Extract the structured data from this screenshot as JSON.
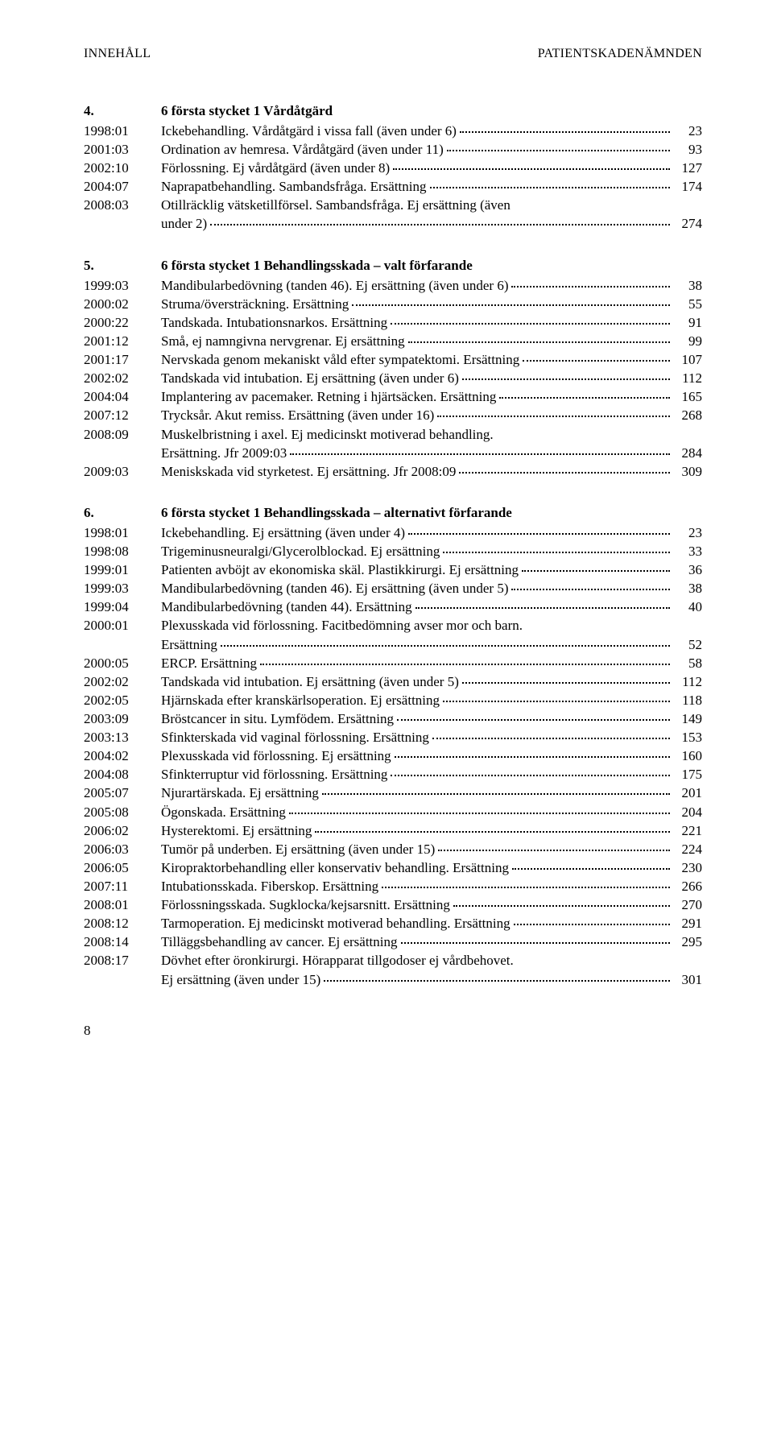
{
  "header": {
    "left": "INNEHÅLL",
    "right": "PATIENTSKADENÄMNDEN"
  },
  "footer_page": "8",
  "sections": [
    {
      "num": "4.",
      "title": "6 första stycket 1 Vårdåtgärd",
      "entries": [
        {
          "code": "1998:01",
          "lines": [
            "Ickebehandling. Vårdåtgärd i vissa fall (även under 6)"
          ],
          "page": "23"
        },
        {
          "code": "2001:03",
          "lines": [
            "Ordination av hemresa. Vårdåtgärd (även under 11)"
          ],
          "page": "93"
        },
        {
          "code": "2002:10",
          "lines": [
            "Förlossning. Ej vårdåtgärd (även under 8)"
          ],
          "page": "127"
        },
        {
          "code": "2004:07",
          "lines": [
            "Naprapatbehandling. Sambandsfråga. Ersättning"
          ],
          "page": "174"
        },
        {
          "code": "2008:03",
          "lines": [
            "Otillräcklig vätsketillförsel. Sambandsfråga. Ej ersättning (även",
            "under 2)"
          ],
          "page": "274"
        }
      ]
    },
    {
      "num": "5.",
      "title": "6 första stycket 1 Behandlingsskada – valt förfarande",
      "entries": [
        {
          "code": "1999:03",
          "lines": [
            "Mandibularbedövning (tanden 46). Ej ersättning (även under 6)"
          ],
          "page": "38"
        },
        {
          "code": "2000:02",
          "lines": [
            "Struma/översträckning. Ersättning"
          ],
          "page": "55"
        },
        {
          "code": "2000:22",
          "lines": [
            "Tandskada. Intubationsnarkos. Ersättning"
          ],
          "page": "91"
        },
        {
          "code": "2001:12",
          "lines": [
            "Små, ej namngivna nervgrenar. Ej ersättning"
          ],
          "page": "99"
        },
        {
          "code": "2001:17",
          "lines": [
            "Nervskada genom mekaniskt våld efter sympatektomi. Ersättning"
          ],
          "page": "107"
        },
        {
          "code": "2002:02",
          "lines": [
            "Tandskada vid intubation. Ej ersättning (även under 6)"
          ],
          "page": "112"
        },
        {
          "code": "2004:04",
          "lines": [
            "Implantering av pacemaker. Retning i hjärtsäcken. Ersättning"
          ],
          "page": "165"
        },
        {
          "code": "2007:12",
          "lines": [
            "Trycksår. Akut remiss. Ersättning (även under 16)"
          ],
          "page": "268"
        },
        {
          "code": "2008:09",
          "lines": [
            "Muskelbristning i axel. Ej medicinskt motiverad behandling.",
            "Ersättning. Jfr 2009:03"
          ],
          "page": "284"
        },
        {
          "code": "2009:03",
          "lines": [
            "Meniskskada vid styrketest. Ej ersättning. Jfr 2008:09"
          ],
          "page": "309"
        }
      ]
    },
    {
      "num": "6.",
      "title": "6 första stycket 1 Behandlingsskada – alternativt förfarande",
      "entries": [
        {
          "code": "1998:01",
          "lines": [
            "Ickebehandling. Ej ersättning (även under 4)"
          ],
          "page": "23"
        },
        {
          "code": "1998:08",
          "lines": [
            "Trigeminusneuralgi/Glycerolblockad. Ej ersättning"
          ],
          "page": "33"
        },
        {
          "code": "1999:01",
          "lines": [
            "Patienten avböjt av ekonomiska skäl. Plastikkirurgi. Ej ersättning"
          ],
          "page": "36"
        },
        {
          "code": "1999:03",
          "lines": [
            "Mandibularbedövning (tanden 46). Ej ersättning (även under 5)"
          ],
          "page": "38"
        },
        {
          "code": "1999:04",
          "lines": [
            "Mandibularbedövning (tanden 44). Ersättning"
          ],
          "page": "40"
        },
        {
          "code": "2000:01",
          "lines": [
            "Plexusskada vid förlossning. Facitbedömning avser mor och barn.",
            "Ersättning"
          ],
          "page": "52"
        },
        {
          "code": "2000:05",
          "lines": [
            "ERCP. Ersättning"
          ],
          "page": "58"
        },
        {
          "code": "2002:02",
          "lines": [
            "Tandskada vid intubation. Ej ersättning (även under 5)"
          ],
          "page": "112"
        },
        {
          "code": "2002:05",
          "lines": [
            "Hjärnskada efter kranskärlsoperation. Ej ersättning"
          ],
          "page": "118"
        },
        {
          "code": "2003:09",
          "lines": [
            "Bröstcancer in situ. Lymfödem. Ersättning"
          ],
          "page": "149"
        },
        {
          "code": "2003:13",
          "lines": [
            "Sfinkterskada vid vaginal förlossning. Ersättning"
          ],
          "page": "153"
        },
        {
          "code": "2004:02",
          "lines": [
            "Plexusskada vid förlossning. Ej ersättning"
          ],
          "page": "160"
        },
        {
          "code": "2004:08",
          "lines": [
            "Sfinkterruptur vid förlossning. Ersättning"
          ],
          "page": "175"
        },
        {
          "code": "2005:07",
          "lines": [
            "Njurartärskada. Ej ersättning"
          ],
          "page": "201"
        },
        {
          "code": "2005:08",
          "lines": [
            "Ögonskada. Ersättning"
          ],
          "page": "204"
        },
        {
          "code": "2006:02",
          "lines": [
            "Hysterektomi. Ej ersättning"
          ],
          "page": "221"
        },
        {
          "code": "2006:03",
          "lines": [
            "Tumör på underben. Ej ersättning (även under 15)"
          ],
          "page": "224"
        },
        {
          "code": "2006:05",
          "lines": [
            "Kiropraktorbehandling eller konservativ behandling. Ersättning"
          ],
          "page": "230"
        },
        {
          "code": "2007:11",
          "lines": [
            "Intubationsskada. Fiberskop. Ersättning"
          ],
          "page": "266"
        },
        {
          "code": "2008:01",
          "lines": [
            "Förlossningsskada. Sugklocka/kejsarsnitt. Ersättning"
          ],
          "page": "270"
        },
        {
          "code": "2008:12",
          "lines": [
            "Tarmoperation. Ej medicinskt motiverad behandling. Ersättning"
          ],
          "page": "291"
        },
        {
          "code": "2008:14",
          "lines": [
            "Tilläggsbehandling av cancer. Ej ersättning"
          ],
          "page": "295"
        },
        {
          "code": "2008:17",
          "lines": [
            "Dövhet efter öronkirurgi. Hörapparat tillgodoser ej vårdbehovet.",
            "Ej ersättning (även under 15)"
          ],
          "page": "301"
        }
      ]
    }
  ]
}
